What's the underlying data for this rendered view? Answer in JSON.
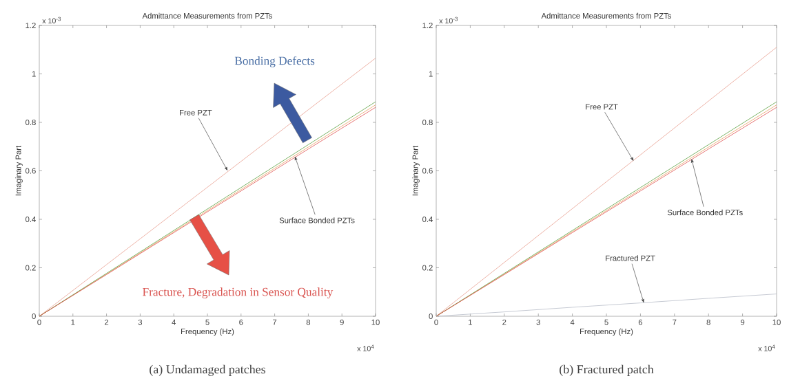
{
  "chart_data": [
    {
      "type": "line",
      "title": "Admittance Measurements from PZTs",
      "xlabel": "Frequency (Hz)",
      "ylabel": "Imaginary Part",
      "x": [
        0,
        2,
        4,
        6,
        8,
        10
      ],
      "xlim": [
        0,
        10
      ],
      "ylim": [
        0,
        1.2
      ],
      "xticks": [
        0,
        1,
        2,
        3,
        4,
        5,
        6,
        7,
        8,
        9,
        10
      ],
      "yticks": [
        0,
        0.2,
        0.4,
        0.6,
        0.8,
        1,
        1.2
      ],
      "series": [
        {
          "color": "#e8a090",
          "values": [
            0,
            0.213,
            0.426,
            0.639,
            0.852,
            1.065
          ]
        },
        {
          "color": "#e8a060",
          "values": [
            0,
            0.174,
            0.349,
            0.523,
            0.698,
            0.872
          ]
        },
        {
          "color": "#5aa040",
          "values": [
            0,
            0.177,
            0.354,
            0.531,
            0.708,
            0.885
          ]
        },
        {
          "color": "#e05050",
          "values": [
            0,
            0.172,
            0.345,
            0.517,
            0.69,
            0.862
          ]
        }
      ],
      "annotations": [
        "x 10$^{-3}$",
        "x 10$^{4}$",
        "(a) Undamaged patches",
        {
          "text": "Free PZT",
          "x": 5.6,
          "y": 0.6
        },
        {
          "text": "Surface Bonded PZTs",
          "x": 7.6,
          "y": 0.66
        },
        "Bonding Defects",
        "Fracture, Degradation in Sensor Quality"
      ]
    },
    {
      "type": "line",
      "title": "Admittance Measurements from PZTs",
      "xlabel": "Frequency (Hz)",
      "ylabel": "Imaginary Part",
      "x": [
        0,
        2,
        4,
        6,
        8,
        10
      ],
      "xlim": [
        0,
        10
      ],
      "ylim": [
        0,
        1.2
      ],
      "xticks": [
        0,
        1,
        2,
        3,
        4,
        5,
        6,
        7,
        8,
        9,
        10
      ],
      "yticks": [
        0,
        0.2,
        0.4,
        0.6,
        0.8,
        1,
        1.2
      ],
      "series": [
        {
          "color": "#e8a090",
          "values": [
            0,
            0.222,
            0.444,
            0.666,
            0.888,
            1.11
          ]
        },
        {
          "color": "#e8a060",
          "values": [
            0,
            0.174,
            0.349,
            0.523,
            0.698,
            0.872
          ]
        },
        {
          "color": "#5aa040",
          "values": [
            0,
            0.177,
            0.354,
            0.531,
            0.708,
            0.885
          ]
        },
        {
          "color": "#e05050",
          "values": [
            0,
            0.172,
            0.345,
            0.517,
            0.69,
            0.862
          ]
        },
        {
          "color": "#b8bcc8",
          "values": [
            0,
            0.018,
            0.037,
            0.055,
            0.074,
            0.092
          ]
        }
      ],
      "annotations": [
        "x 10$^{-3}$",
        "x 10$^{4}$",
        "(b) Fractured patch",
        {
          "text": "Free PZT",
          "x": 5.8,
          "y": 0.64
        },
        {
          "text": "Surface Bonded PZTs",
          "x": 7.5,
          "y": 0.65
        },
        {
          "text": "Fractured PZT",
          "x": 6.1,
          "y": 0.055
        }
      ]
    }
  ]
}
